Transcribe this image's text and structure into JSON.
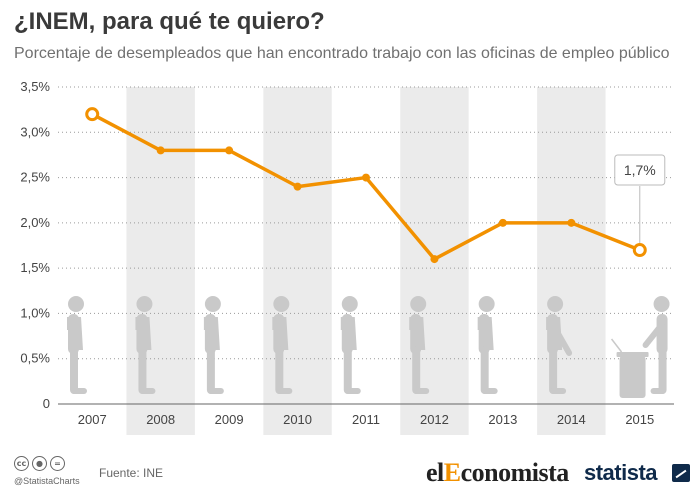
{
  "header": {
    "title": "¿INEM, para qué te quiero?",
    "subtitle": "Porcentaje de desempleados que han encontrado trabajo con las oficinas de empleo público"
  },
  "chart_data": {
    "type": "line",
    "x": [
      "2007",
      "2008",
      "2009",
      "2010",
      "2011",
      "2012",
      "2013",
      "2014",
      "2015"
    ],
    "series": [
      {
        "values": [
          3.2,
          2.8,
          2.8,
          2.4,
          2.5,
          1.6,
          2.0,
          2.0,
          1.7
        ]
      }
    ],
    "y_ticks": [
      0,
      0.5,
      1.0,
      1.5,
      2.0,
      2.5,
      3.0,
      3.5
    ],
    "y_tick_labels": [
      "0",
      "0,5%",
      "1,0%",
      "1,5%",
      "2,0%",
      "2,5%",
      "3,0%",
      "3,5%"
    ],
    "ylim": [
      0,
      3.5
    ],
    "callout": {
      "index": 8,
      "label": "1,7%"
    },
    "line_color": "#f29100",
    "band_color": "#ebebeb",
    "figure_color": "#c9c9c9",
    "grid": "horizontal-dotted",
    "legend": "none"
  },
  "footer": {
    "cc_icons": [
      "cc",
      "by",
      "nd"
    ],
    "handle": "@StatistaCharts",
    "source": "Fuente: INE",
    "brand_el": "el",
    "brand_e": "E",
    "brand_rest": "conomista",
    "brand_statista": "statista"
  }
}
